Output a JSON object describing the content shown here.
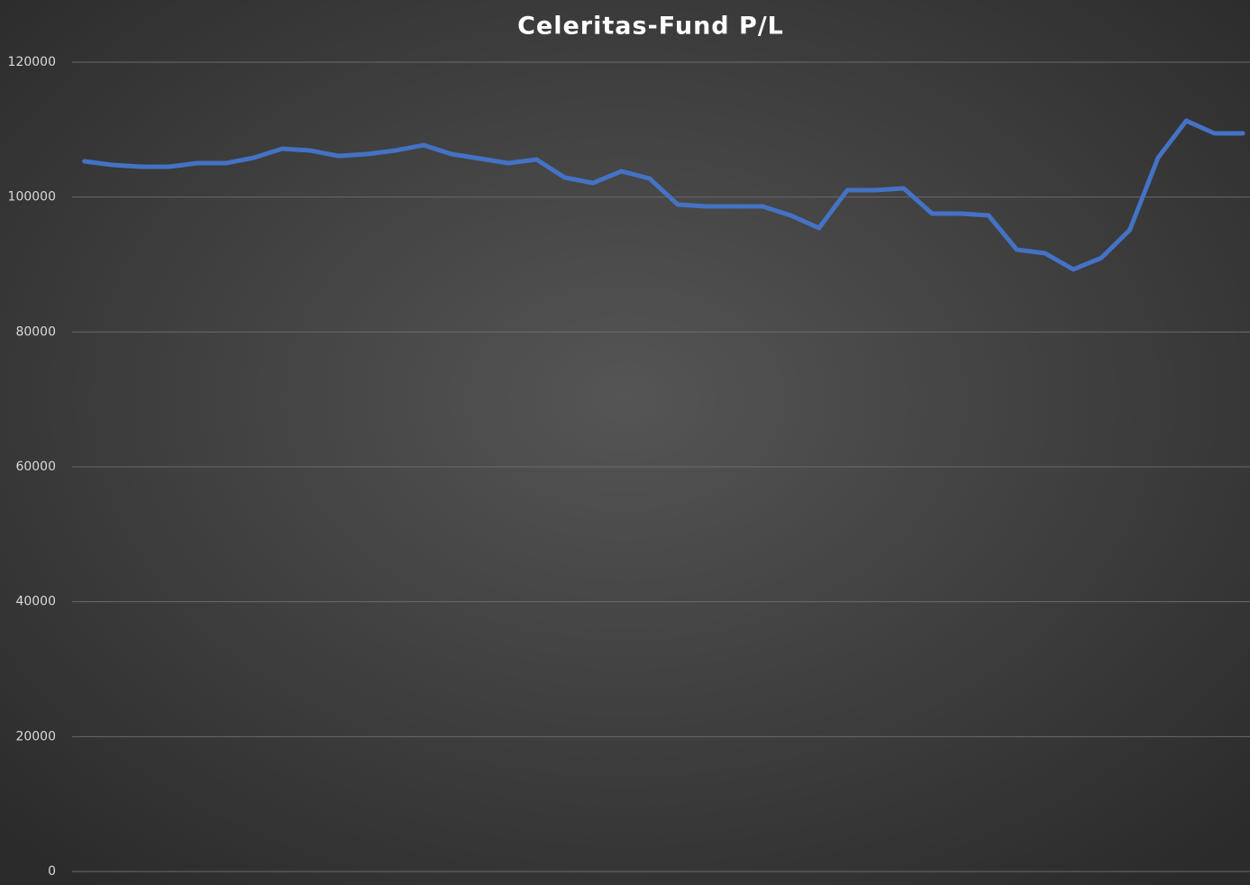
{
  "chart_data": {
    "type": "line",
    "title": "Celeritas-Fund  P/L",
    "series": [
      {
        "name": "P/L",
        "color": "#4472c4",
        "values": [
          105300,
          104760,
          104500,
          104500,
          105030,
          105030,
          105830,
          107170,
          106900,
          106100,
          106370,
          106900,
          107700,
          106370,
          105700,
          105030,
          105570,
          102900,
          102090,
          103830,
          102760,
          98890,
          98620,
          98620,
          98620,
          97280,
          95410,
          101020,
          101020,
          101290,
          97550,
          97550,
          97280,
          92200,
          91670,
          89270,
          91000,
          95140,
          105830,
          111310,
          109440,
          109440
        ]
      }
    ],
    "ylim": [
      0,
      120000
    ],
    "yticks": [
      0,
      20000,
      40000,
      60000,
      80000,
      100000,
      120000
    ],
    "grid": true
  }
}
